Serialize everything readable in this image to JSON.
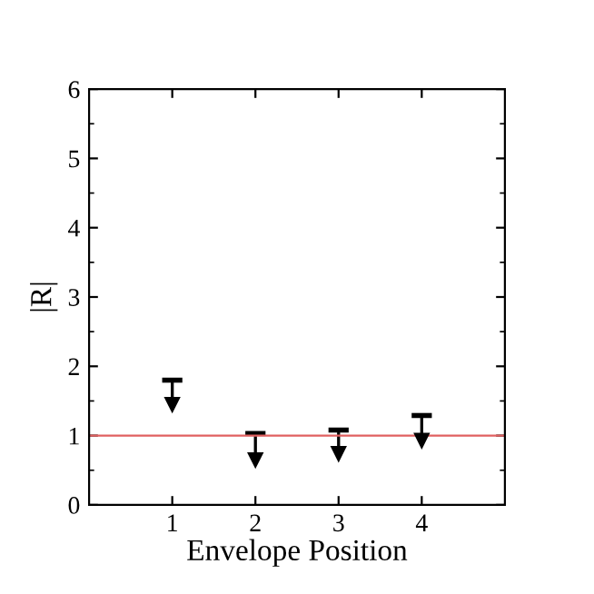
{
  "chart_data": {
    "type": "scatter",
    "xlabel": "Envelope Position",
    "ylabel": "|R|",
    "x": [
      1,
      2,
      3,
      4
    ],
    "series": [
      {
        "color": "#000000",
        "values": [
          1.45,
          0.65,
          0.74,
          0.93
        ],
        "errors": [
          [
            1.45,
            1.8
          ],
          [
            0.65,
            1.03
          ],
          [
            0.74,
            1.08
          ],
          [
            0.93,
            1.29
          ]
        ]
      }
    ],
    "marker": "triangle",
    "xlim": [
      0,
      5
    ],
    "xticks": [
      1,
      2,
      3,
      4
    ],
    "ylim": [
      0,
      6
    ],
    "yticks": [
      0,
      1,
      2,
      3,
      4,
      5,
      6
    ],
    "ref_lines": [
      {
        "axis": "y",
        "value": 1,
        "color": "#e06060"
      }
    ],
    "grid": false,
    "legend": false
  }
}
